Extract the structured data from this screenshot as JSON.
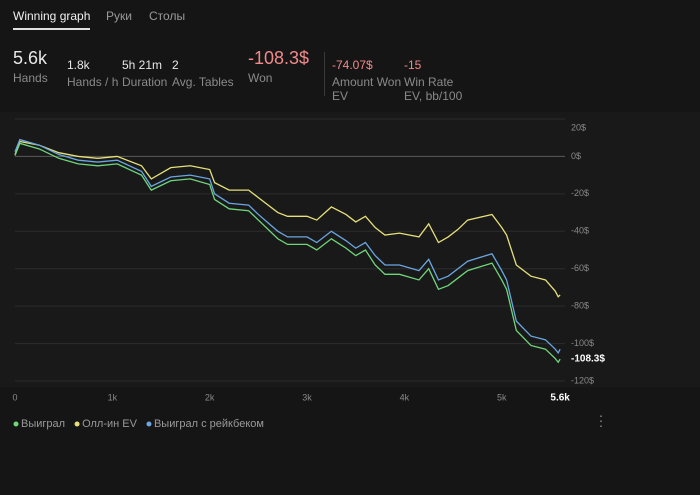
{
  "tabs": [
    "Winning graph",
    "Руки",
    "Столы"
  ],
  "stats": [
    {
      "value": "5.6k",
      "label": "Hands"
    },
    {
      "value": "1.8k",
      "label": "Hands / h"
    },
    {
      "value": "5h 21m",
      "label": "Duration"
    },
    {
      "value": "2",
      "label": "Avg. Tables"
    },
    {
      "value": "-108.3$",
      "label": "Won"
    },
    {
      "value": "-74.07$",
      "label": "Amount Won EV"
    },
    {
      "value": "-15",
      "label": "Win Rate EV, bb/100"
    }
  ],
  "chart_data": {
    "type": "line",
    "x": [
      0,
      50,
      250,
      450,
      650,
      850,
      1050,
      1300,
      1400,
      1600,
      1800,
      2000,
      2050,
      2200,
      2400,
      2500,
      2700,
      2800,
      3000,
      3100,
      3250,
      3400,
      3500,
      3600,
      3700,
      3800,
      3950,
      4150,
      4250,
      4350,
      4450,
      4550,
      4650,
      4900,
      5000,
      5050,
      5150,
      5300,
      5450,
      5550,
      5580,
      5600
    ],
    "series": [
      {
        "name": "Выиграл",
        "color": "#6fd67a",
        "values": [
          0.5,
          7,
          4,
          -1,
          -4,
          -5,
          -4,
          -10,
          -18,
          -13,
          -12,
          -15,
          -23,
          -28,
          -29,
          -34,
          -44,
          -47,
          -47,
          -50,
          -44,
          -49,
          -53,
          -50,
          -58,
          -63,
          -63,
          -66,
          -60,
          -71,
          -69,
          -65,
          -61,
          -57,
          -66,
          -71,
          -93,
          -101,
          -103,
          -108,
          -110,
          -108.3
        ]
      },
      {
        "name": "Олл-ин EV",
        "color": "#e6e07a",
        "values": [
          1,
          8,
          6,
          2,
          0,
          -1,
          0,
          -5,
          -12,
          -6,
          -5,
          -7,
          -14,
          -18,
          -18,
          -22,
          -30,
          -32,
          -32,
          -34,
          -27,
          -31,
          -35,
          -32,
          -38,
          -42,
          -41,
          -43,
          -36,
          -46,
          -43,
          -39,
          -34,
          -31,
          -38,
          -42,
          -58,
          -64,
          -66,
          -72,
          -75,
          -74
        ]
      },
      {
        "name": "Выиграл с рейкбеком",
        "color": "#6aa6e0",
        "values": [
          2.5,
          9,
          6,
          1,
          -2,
          -3,
          -2,
          -8,
          -16,
          -11,
          -10,
          -12,
          -20,
          -25,
          -26,
          -31,
          -40,
          -43,
          -43,
          -46,
          -40,
          -45,
          -49,
          -46,
          -53,
          -58,
          -58,
          -61,
          -55,
          -66,
          -64,
          -60,
          -56,
          -52,
          -61,
          -66,
          -88,
          -96,
          -98,
          -103,
          -105,
          -103
        ]
      }
    ],
    "xlim": [
      0,
      5650
    ],
    "xticks": [
      0,
      {
        "value": 1000,
        "label": "1k"
      },
      {
        "value": 2000,
        "label": "2k"
      },
      {
        "value": 3000,
        "label": "3k"
      },
      {
        "value": 4000,
        "label": "4k"
      },
      {
        "value": 5000,
        "label": "5k"
      }
    ],
    "last_hand": {
      "value": 5600,
      "label": "5.6k"
    },
    "ylim": [
      -120,
      20
    ],
    "yticks": [
      {
        "value": 20,
        "label": "20$"
      },
      {
        "value": 0,
        "label": "0$"
      },
      {
        "value": -20,
        "label": "-20$"
      },
      {
        "value": -40,
        "label": "-40$"
      },
      {
        "value": -60,
        "label": "-60$"
      },
      {
        "value": -80,
        "label": "-80$"
      },
      {
        "value": -100,
        "label": "-100$"
      },
      {
        "value": -120,
        "label": "-120$"
      }
    ],
    "end_label": {
      "value": -108.3,
      "label": "-108.3$"
    },
    "grid": true
  }
}
